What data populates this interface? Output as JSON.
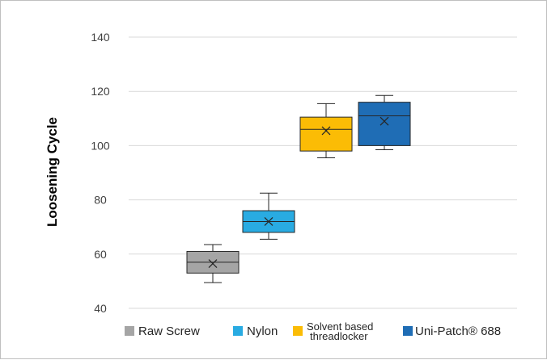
{
  "chart_data": {
    "type": "box",
    "title": "",
    "xlabel": "",
    "ylabel": "Loosening Cycle",
    "ylim": [
      40,
      140
    ],
    "yticks": [
      40,
      60,
      80,
      100,
      120,
      140
    ],
    "grid": true,
    "legend_position": "bottom",
    "series": [
      {
        "name": "Raw Screw",
        "color": "#a5a5a5",
        "min": 49.5,
        "q1": 53,
        "median": 57,
        "q3": 61,
        "max": 63.5,
        "mean": 56.5
      },
      {
        "name": "Nylon",
        "color": "#29abe2",
        "min": 65.5,
        "q1": 68,
        "median": 72,
        "q3": 76,
        "max": 82.5,
        "mean": 72
      },
      {
        "name": "Solvent based threadlocker",
        "color": "#fbbc05",
        "min": 95.5,
        "q1": 98,
        "median": 106,
        "q3": 110.5,
        "max": 115.5,
        "mean": 105.5
      },
      {
        "name": "Uni-Patch® 688",
        "color": "#1f6db5",
        "min": 98.5,
        "q1": 100,
        "median": 111,
        "q3": 116,
        "max": 118.5,
        "mean": 109
      }
    ]
  }
}
